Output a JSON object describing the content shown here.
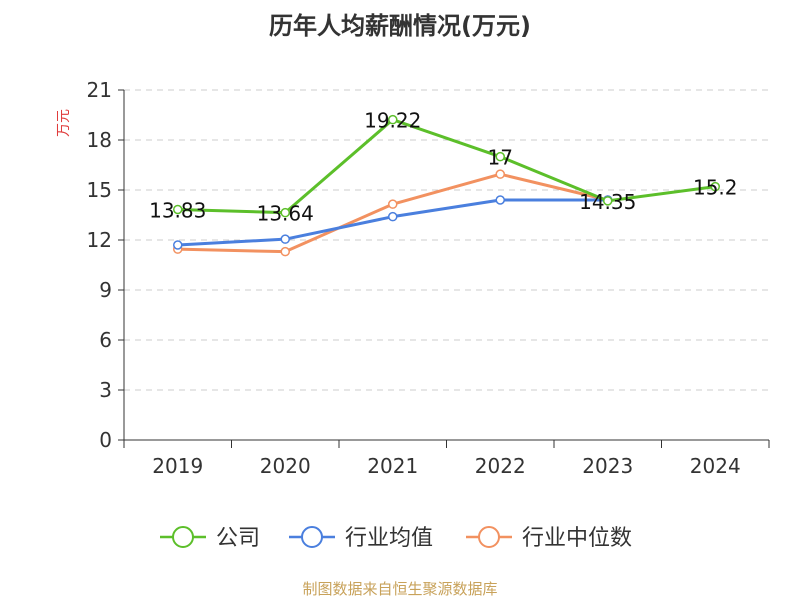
{
  "chart_data": {
    "type": "line",
    "title": "历年人均薪酬情况(万元)",
    "ylabel": "万元",
    "categories": [
      "2019",
      "2020",
      "2021",
      "2022",
      "2023",
      "2024"
    ],
    "ylim": [
      0,
      21
    ],
    "yticks": [
      0,
      3,
      6,
      9,
      12,
      15,
      18,
      21
    ],
    "grid": true,
    "legend_position": "bottom",
    "series": [
      {
        "name": "公司",
        "color": "#5cbf2a",
        "values": [
          13.83,
          13.64,
          19.22,
          17,
          14.35,
          15.2
        ],
        "labels": [
          "13.83",
          "13.64",
          "19.22",
          "17",
          "14.35",
          "15.2"
        ]
      },
      {
        "name": "行业均值",
        "color": "#4a7fde",
        "values": [
          11.7,
          12.05,
          13.4,
          14.4,
          14.4,
          null
        ]
      },
      {
        "name": "行业中位数",
        "color": "#f29160",
        "values": [
          11.45,
          11.3,
          14.15,
          15.95,
          14.4,
          null
        ]
      }
    ]
  },
  "source_text": "制图数据来自恒生聚源数据库",
  "colors": {
    "ylabel": "#e03c3c",
    "source": "#c8a25a",
    "grid": "#cccccc",
    "axis": "#333333"
  }
}
